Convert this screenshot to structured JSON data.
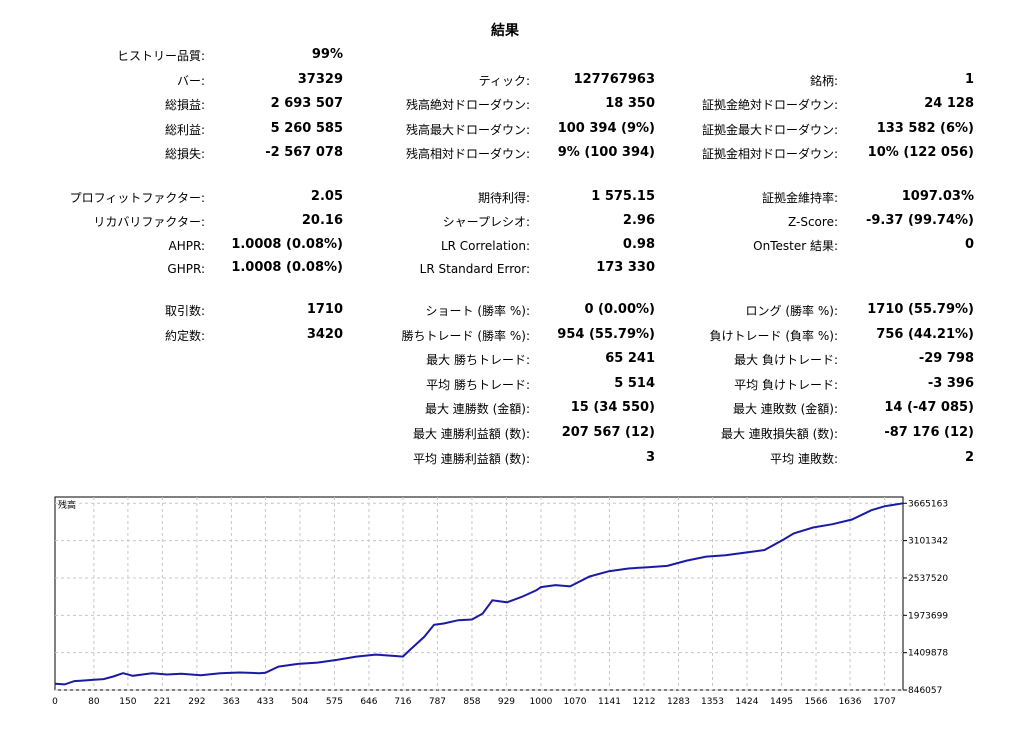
{
  "title": "結果",
  "stats": {
    "history_quality": {
      "label": "ヒストリー品質:",
      "value": "99%"
    },
    "bars": {
      "label": "バー:",
      "value": "37329"
    },
    "ticks": {
      "label": "ティック:",
      "value": "127767963"
    },
    "symbols": {
      "label": "銘柄:",
      "value": "1"
    },
    "total_net_profit": {
      "label": "総損益:",
      "value": "2 693 507"
    },
    "balance_dd_abs": {
      "label": "残高絶対ドローダウン:",
      "value": "18 350"
    },
    "equity_dd_abs": {
      "label": "証拠金絶対ドローダウン:",
      "value": "24 128"
    },
    "gross_profit": {
      "label": "総利益:",
      "value": "5 260 585"
    },
    "balance_dd_max": {
      "label": "残高最大ドローダウン:",
      "value": "100 394 (9%)"
    },
    "equity_dd_max": {
      "label": "証拠金最大ドローダウン:",
      "value": "133 582 (6%)"
    },
    "gross_loss": {
      "label": "総損失:",
      "value": "-2 567 078"
    },
    "balance_dd_rel": {
      "label": "残高相対ドローダウン:",
      "value": "9% (100 394)"
    },
    "equity_dd_rel": {
      "label": "証拠金相対ドローダウン:",
      "value": "10% (122 056)"
    },
    "profit_factor": {
      "label": "プロフィットファクター:",
      "value": "2.05"
    },
    "expected_payoff": {
      "label": "期待利得:",
      "value": "1 575.15"
    },
    "margin_level": {
      "label": "証拠金維持率:",
      "value": "1097.03%"
    },
    "recovery_factor": {
      "label": "リカバリファクター:",
      "value": "20.16"
    },
    "sharpe_ratio": {
      "label": "シャープレシオ:",
      "value": "2.96"
    },
    "z_score": {
      "label": "Z-Score:",
      "value": "-9.37 (99.74%)"
    },
    "ahpr": {
      "label": "AHPR:",
      "value": "1.0008 (0.08%)"
    },
    "lr_correlation": {
      "label": "LR Correlation:",
      "value": "0.98"
    },
    "ontester_result": {
      "label": "OnTester 結果:",
      "value": "0"
    },
    "ghpr": {
      "label": "GHPR:",
      "value": "1.0008 (0.08%)"
    },
    "lr_std_error": {
      "label": "LR Standard Error:",
      "value": "173 330"
    },
    "total_trades": {
      "label": "取引数:",
      "value": "1710"
    },
    "short_trades": {
      "label": "ショート (勝率 %):",
      "value": "0 (0.00%)"
    },
    "long_trades": {
      "label": "ロング (勝率 %):",
      "value": "1710 (55.79%)"
    },
    "total_deals": {
      "label": "約定数:",
      "value": "3420"
    },
    "profit_trades": {
      "label": "勝ちトレード (勝率 %):",
      "value": "954 (55.79%)"
    },
    "loss_trades": {
      "label": "負けトレード (負率 %):",
      "value": "756 (44.21%)"
    },
    "largest_profit": {
      "label": "最大 勝ちトレード:",
      "value": "65 241"
    },
    "largest_loss": {
      "label": "最大 負けトレード:",
      "value": "-29 798"
    },
    "avg_profit": {
      "label": "平均 勝ちトレード:",
      "value": "5 514"
    },
    "avg_loss": {
      "label": "平均 負けトレード:",
      "value": "-3 396"
    },
    "max_consec_wins": {
      "label": "最大 連勝数 (金額):",
      "value": "15 (34 550)"
    },
    "max_consec_losses": {
      "label": "最大 連敗数 (金額):",
      "value": "14 (-47 085)"
    },
    "max_consec_profit": {
      "label": "最大 連勝利益額 (数):",
      "value": "207 567 (12)"
    },
    "max_consec_loss": {
      "label": "最大 連敗損失額 (数):",
      "value": "-87 176 (12)"
    },
    "avg_consec_wins": {
      "label": "平均 連勝利益額 (数):",
      "value": "3"
    },
    "avg_consec_losses": {
      "label": "平均 連敗数:",
      "value": "2"
    }
  },
  "chart_data": {
    "type": "line",
    "title": "残高",
    "line_color": "#1a1aa6",
    "grid": true,
    "xlim": [
      0,
      1745
    ],
    "ylim": [
      846057,
      3760000
    ],
    "x_ticks": [
      "0",
      "80",
      "150",
      "221",
      "292",
      "363",
      "433",
      "504",
      "575",
      "646",
      "716",
      "787",
      "858",
      "929",
      "1000",
      "1070",
      "1141",
      "1212",
      "1283",
      "1353",
      "1424",
      "1495",
      "1566",
      "1636",
      "1707"
    ],
    "y_ticks": [
      "3665163",
      "3101342",
      "2537520",
      "1973699",
      "1409878",
      "846057"
    ],
    "series": [
      {
        "x": [
          0,
          20,
          40,
          60,
          80,
          100,
          120,
          140,
          160,
          180,
          200,
          230,
          260,
          300,
          340,
          380,
          420,
          433,
          460,
          500,
          540,
          580,
          620,
          660,
          700,
          716,
          730,
          760,
          780,
          800,
          830,
          858,
          880,
          900,
          930,
          960,
          990,
          1000,
          1030,
          1060,
          1100,
          1140,
          1180,
          1220,
          1260,
          1300,
          1340,
          1380,
          1420,
          1460,
          1500,
          1520,
          1560,
          1600,
          1640,
          1680,
          1707,
          1745
        ],
        "values": [
          940000,
          930000,
          980000,
          990000,
          1000000,
          1010000,
          1050000,
          1100000,
          1060000,
          1080000,
          1100000,
          1080000,
          1090000,
          1070000,
          1100000,
          1110000,
          1100000,
          1105000,
          1200000,
          1240000,
          1260000,
          1300000,
          1350000,
          1380000,
          1360000,
          1350000,
          1450000,
          1650000,
          1830000,
          1850000,
          1900000,
          1910000,
          2000000,
          2200000,
          2170000,
          2250000,
          2350000,
          2400000,
          2430000,
          2410000,
          2560000,
          2640000,
          2680000,
          2700000,
          2720000,
          2800000,
          2860000,
          2880000,
          2920000,
          2960000,
          3120000,
          3210000,
          3300000,
          3350000,
          3420000,
          3560000,
          3620000,
          3665163
        ]
      }
    ]
  }
}
